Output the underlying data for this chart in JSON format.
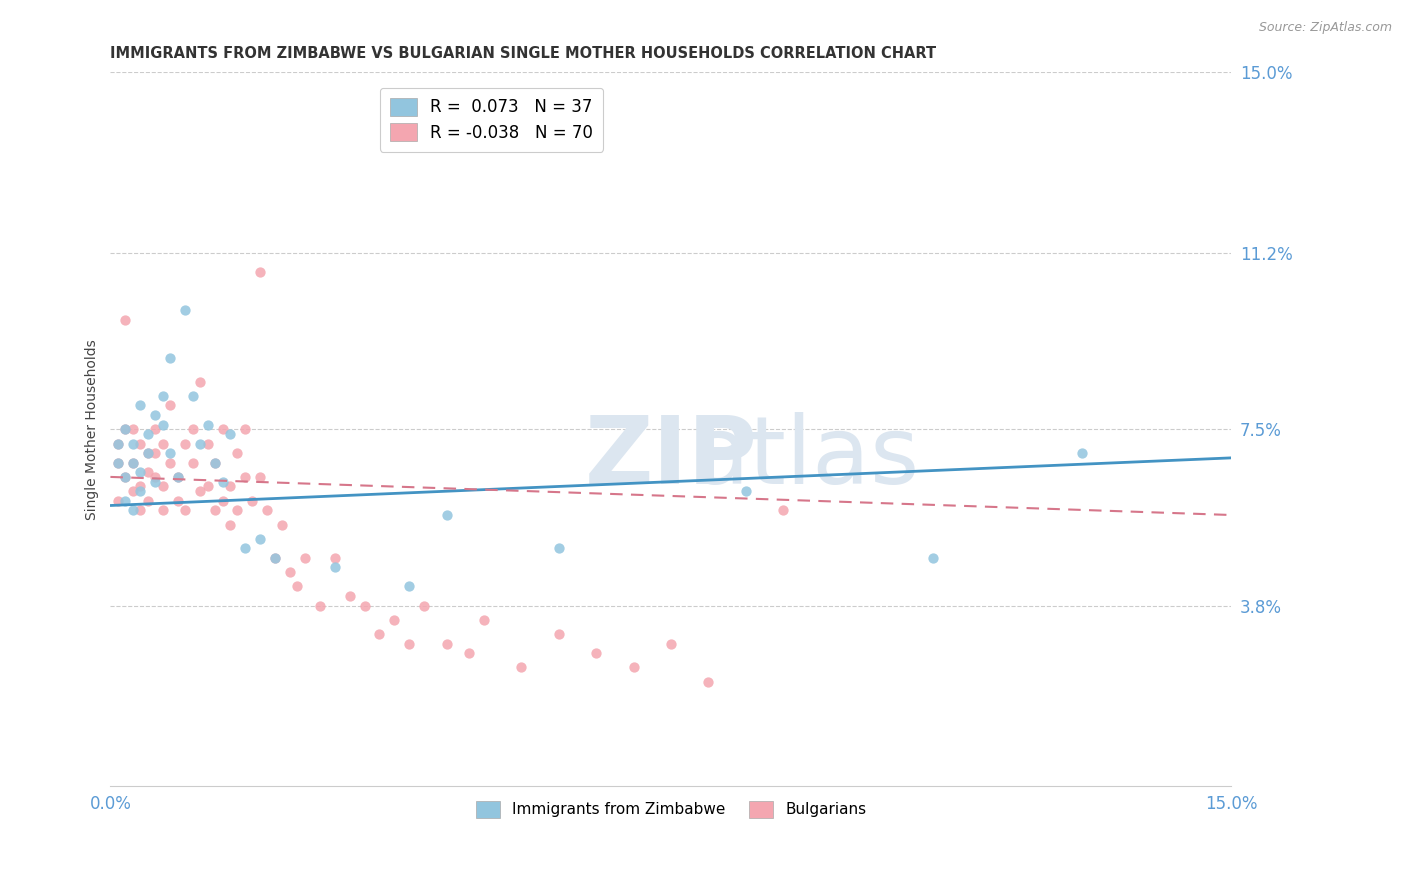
{
  "title": "IMMIGRANTS FROM ZIMBABWE VS BULGARIAN SINGLE MOTHER HOUSEHOLDS CORRELATION CHART",
  "source": "Source: ZipAtlas.com",
  "ylabel": "Single Mother Households",
  "right_yticks": [
    "15.0%",
    "11.2%",
    "7.5%",
    "3.8%"
  ],
  "right_ytick_vals": [
    0.15,
    0.112,
    0.075,
    0.038
  ],
  "xlim": [
    0.0,
    0.15
  ],
  "ylim": [
    0.0,
    0.15
  ],
  "blue_color": "#92c5de",
  "pink_color": "#f4a6b0",
  "blue_line_color": "#4393c3",
  "pink_line_color": "#d6768a",
  "grid_color": "#cccccc",
  "title_color": "#333333",
  "axis_color": "#5b9bd5",
  "background_color": "#ffffff",
  "watermark_color": "#dce6f0",
  "zim_x": [
    0.001,
    0.001,
    0.002,
    0.002,
    0.002,
    0.003,
    0.003,
    0.003,
    0.004,
    0.004,
    0.004,
    0.005,
    0.005,
    0.006,
    0.006,
    0.007,
    0.007,
    0.008,
    0.008,
    0.009,
    0.01,
    0.011,
    0.012,
    0.013,
    0.014,
    0.015,
    0.016,
    0.018,
    0.02,
    0.022,
    0.03,
    0.04,
    0.045,
    0.06,
    0.085,
    0.11,
    0.13
  ],
  "zim_y": [
    0.068,
    0.072,
    0.06,
    0.075,
    0.065,
    0.068,
    0.072,
    0.058,
    0.062,
    0.066,
    0.08,
    0.07,
    0.074,
    0.064,
    0.078,
    0.076,
    0.082,
    0.07,
    0.09,
    0.065,
    0.1,
    0.082,
    0.072,
    0.076,
    0.068,
    0.064,
    0.074,
    0.05,
    0.052,
    0.048,
    0.046,
    0.042,
    0.057,
    0.05,
    0.062,
    0.048,
    0.07
  ],
  "bul_x": [
    0.001,
    0.001,
    0.001,
    0.002,
    0.002,
    0.002,
    0.003,
    0.003,
    0.003,
    0.004,
    0.004,
    0.004,
    0.005,
    0.005,
    0.005,
    0.006,
    0.006,
    0.006,
    0.007,
    0.007,
    0.007,
    0.008,
    0.008,
    0.009,
    0.009,
    0.01,
    0.01,
    0.011,
    0.011,
    0.012,
    0.012,
    0.013,
    0.013,
    0.014,
    0.014,
    0.015,
    0.015,
    0.016,
    0.016,
    0.017,
    0.017,
    0.018,
    0.018,
    0.019,
    0.02,
    0.02,
    0.021,
    0.022,
    0.023,
    0.024,
    0.025,
    0.026,
    0.028,
    0.03,
    0.032,
    0.034,
    0.036,
    0.038,
    0.04,
    0.042,
    0.045,
    0.048,
    0.05,
    0.055,
    0.06,
    0.065,
    0.07,
    0.075,
    0.08,
    0.09
  ],
  "bul_y": [
    0.068,
    0.072,
    0.06,
    0.098,
    0.075,
    0.065,
    0.075,
    0.062,
    0.068,
    0.063,
    0.072,
    0.058,
    0.07,
    0.066,
    0.06,
    0.075,
    0.065,
    0.07,
    0.063,
    0.072,
    0.058,
    0.068,
    0.08,
    0.065,
    0.06,
    0.072,
    0.058,
    0.068,
    0.075,
    0.062,
    0.085,
    0.063,
    0.072,
    0.058,
    0.068,
    0.06,
    0.075,
    0.055,
    0.063,
    0.07,
    0.058,
    0.075,
    0.065,
    0.06,
    0.108,
    0.065,
    0.058,
    0.048,
    0.055,
    0.045,
    0.042,
    0.048,
    0.038,
    0.048,
    0.04,
    0.038,
    0.032,
    0.035,
    0.03,
    0.038,
    0.03,
    0.028,
    0.035,
    0.025,
    0.032,
    0.028,
    0.025,
    0.03,
    0.022,
    0.058
  ],
  "blue_line_x": [
    0.0,
    0.15
  ],
  "blue_line_y": [
    0.059,
    0.069
  ],
  "pink_line_x": [
    0.0,
    0.15
  ],
  "pink_line_y": [
    0.065,
    0.057
  ],
  "legend1_label": "R =  0.073   N = 37",
  "legend2_label": "R = -0.038   N = 70",
  "bottom_legend1": "Immigrants from Zimbabwe",
  "bottom_legend2": "Bulgarians"
}
